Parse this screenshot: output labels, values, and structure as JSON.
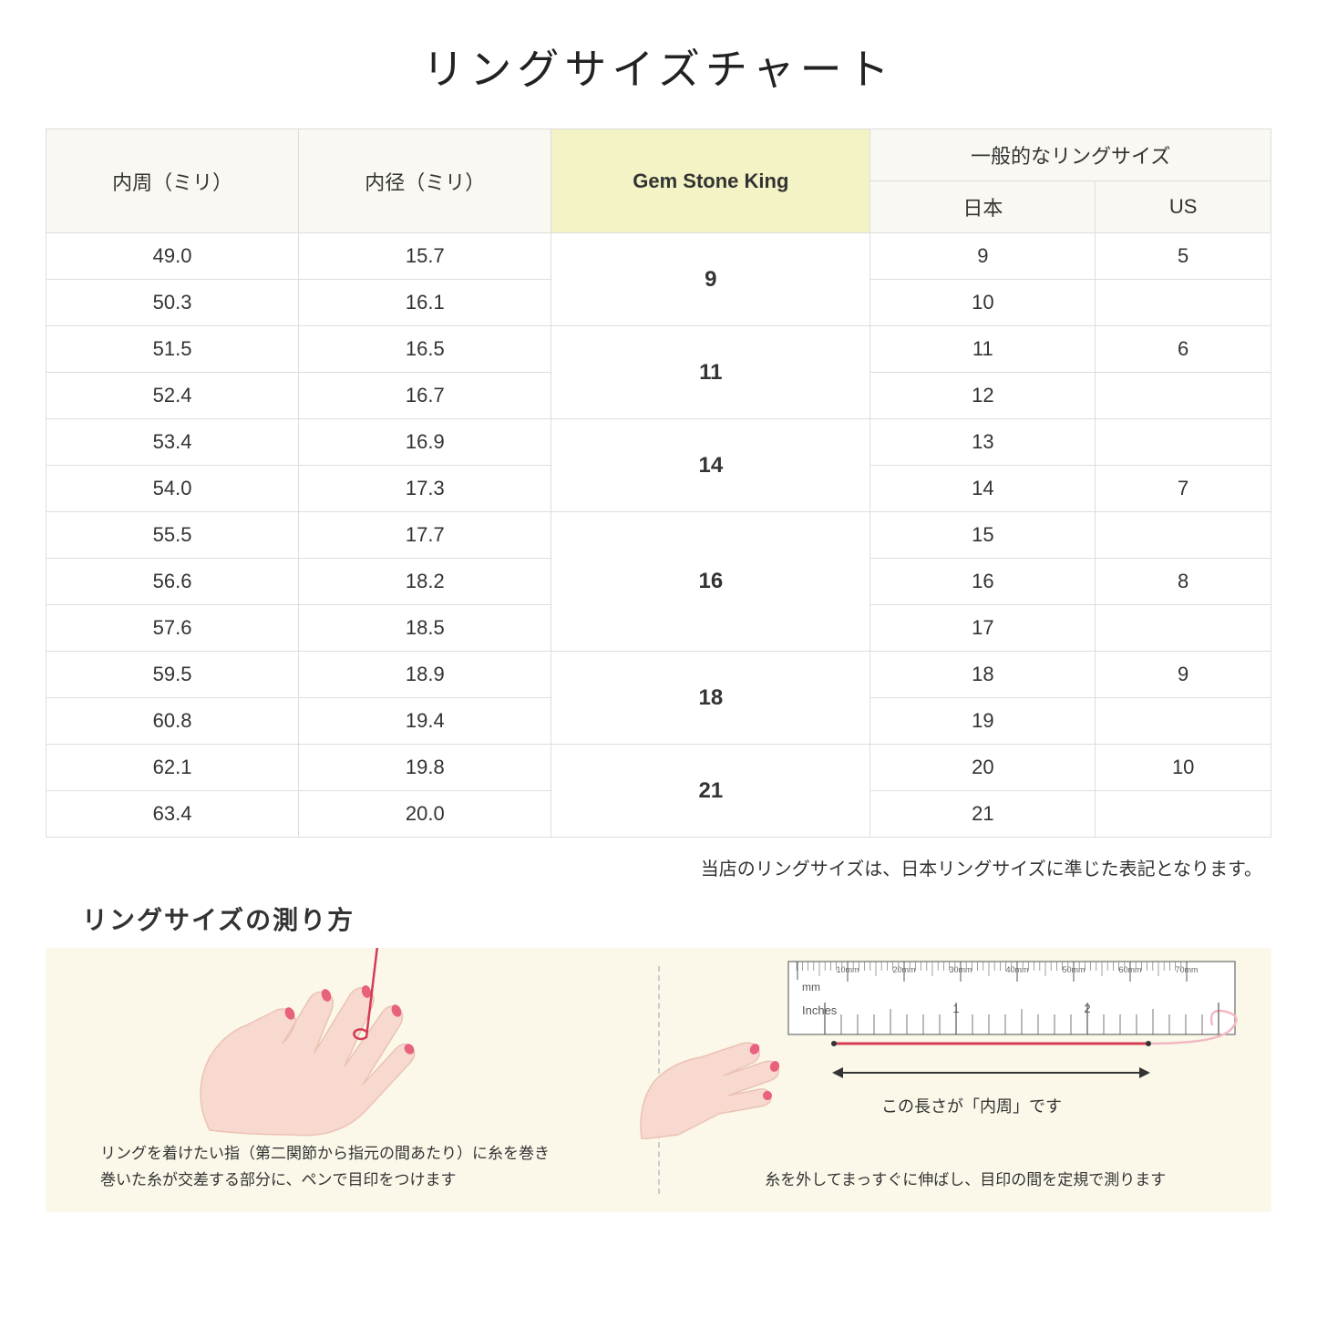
{
  "title": "リングサイズチャート",
  "table": {
    "headers": {
      "circumference": "内周（ミリ）",
      "diameter": "内径（ミリ）",
      "gsk": "Gem Stone King",
      "common": "一般的なリングサイズ",
      "japan": "日本",
      "us": "US"
    },
    "groups": [
      {
        "gsk": "9",
        "rows": [
          {
            "circ": "49.0",
            "diam": "15.7",
            "jp": "9",
            "us": "5"
          },
          {
            "circ": "50.3",
            "diam": "16.1",
            "jp": "10",
            "us": ""
          }
        ]
      },
      {
        "gsk": "11",
        "rows": [
          {
            "circ": "51.5",
            "diam": "16.5",
            "jp": "11",
            "us": "6"
          },
          {
            "circ": "52.4",
            "diam": "16.7",
            "jp": "12",
            "us": ""
          }
        ]
      },
      {
        "gsk": "14",
        "rows": [
          {
            "circ": "53.4",
            "diam": "16.9",
            "jp": "13",
            "us": ""
          },
          {
            "circ": "54.0",
            "diam": "17.3",
            "jp": "14",
            "us": "7"
          }
        ]
      },
      {
        "gsk": "16",
        "rows": [
          {
            "circ": "55.5",
            "diam": "17.7",
            "jp": "15",
            "us": ""
          },
          {
            "circ": "56.6",
            "diam": "18.2",
            "jp": "16",
            "us": "8"
          },
          {
            "circ": "57.6",
            "diam": "18.5",
            "jp": "17",
            "us": ""
          }
        ]
      },
      {
        "gsk": "18",
        "rows": [
          {
            "circ": "59.5",
            "diam": "18.9",
            "jp": "18",
            "us": "9"
          },
          {
            "circ": "60.8",
            "diam": "19.4",
            "jp": "19",
            "us": ""
          }
        ]
      },
      {
        "gsk": "21",
        "rows": [
          {
            "circ": "62.1",
            "diam": "19.8",
            "jp": "20",
            "us": "10"
          },
          {
            "circ": "63.4",
            "diam": "20.0",
            "jp": "21",
            "us": ""
          }
        ]
      }
    ]
  },
  "note": "当店のリングサイズは、日本リングサイズに準じた表記となります。",
  "subtitle": "リングサイズの測り方",
  "howto": {
    "left_caption": "リングを着けたい指（第二関節から指元の間あたり）に糸を巻き\n巻いた糸が交差する部分に、ペンで目印をつけます",
    "right_caption": "糸を外してまっすぐに伸ばし、目印の間を定規で測ります",
    "ruler_label": "この長さが「内周」です",
    "ruler": {
      "mm_text": "mm",
      "inches_text": "Inches",
      "mm_marks": [
        "10mm",
        "20mm",
        "30mm",
        "40mm",
        "50mm",
        "60mm",
        "70mm"
      ],
      "inch_marks": [
        "1",
        "2"
      ]
    }
  },
  "colors": {
    "header_bg": "#f9f8f2",
    "highlight_bg": "#f3f3c5",
    "border": "#dddddd",
    "howto_bg": "#fbf8e9",
    "skin": "#f7d9cf",
    "skin_dark": "#ebc2b4",
    "nail": "#e8617d",
    "thread": "#d43b55",
    "ruler_border": "#888",
    "ruler_bg": "#ffffff"
  }
}
